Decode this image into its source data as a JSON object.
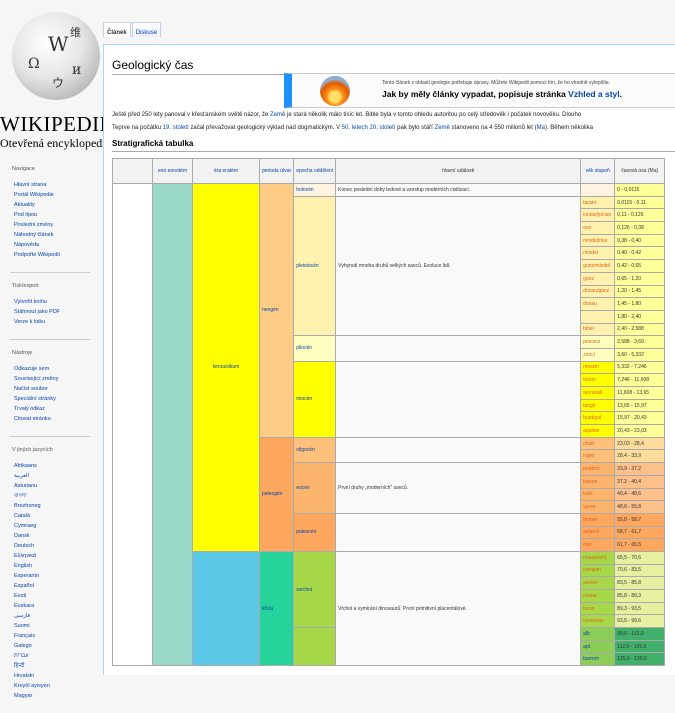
{
  "site": {
    "wordmark": "WIKIPEDIE",
    "tagline": "Otevřená encyklopedie",
    "globe_glyphs": [
      "W",
      "Ω",
      "维",
      "и",
      "ウ"
    ]
  },
  "tabs": [
    {
      "label": "Článek",
      "selected": true
    },
    {
      "label": "Diskuse",
      "selected": false
    }
  ],
  "sidebar": [
    {
      "heading": "Navigace",
      "items": [
        "Hlavní strana",
        "Portál Wikipedie",
        "Aktuality",
        "Pod lípou",
        "Poslední změny",
        "Náhodný článek",
        "Nápověda",
        "Podpořte Wikipedii"
      ]
    },
    {
      "heading": "Tisk/export",
      "items": [
        "Vytvořit knihu",
        "Stáhnout jako PDF",
        "Verze k tisku"
      ]
    },
    {
      "heading": "Nástroje",
      "items": [
        "Odkazuje sem",
        "Související změny",
        "Načíst soubor",
        "Speciální stránky",
        "Trvalý odkaz",
        "Citovat stránku"
      ]
    },
    {
      "heading": "V jiných jazycích",
      "items": [
        "Afrikaans",
        "العربية",
        "Asturianu",
        "বাংলা",
        "Brezhoneg",
        "Català",
        "Cymraeg",
        "Dansk",
        "Deutsch",
        "Ελληνικά",
        "English",
        "Esperanto",
        "Español",
        "Eesti",
        "Euskara",
        "فارسی",
        "Suomi",
        "Français",
        "Galego",
        "עברית",
        "हिन्दी",
        "Hrvatski",
        "Kreyòl ayisyen",
        "Magyar"
      ]
    }
  ],
  "page": {
    "title": "Geologický čas"
  },
  "ambox": {
    "small": "Tento článek z oblasti geologie potřebuje úpravy. Můžete Wikipedii pomoci tím, že ho vhodně vylepšíte.",
    "bold_pre": "Jak by měly články vypadat, popisuje stránka ",
    "bold_link": "Vzhled a styl",
    "bold_post": "."
  },
  "intro": {
    "l1_a": "Ještě před 250 lety panoval v křesťanském světě názor, že ",
    "l1_link": "Země",
    "l1_b": " je stará několik málo tisíc let. Bible byla v tomto ohledu autoritou po celý středověk i počátek novověku. Dlouho",
    "l2_a": "Teprve na počátku ",
    "l2_link1": "19. století",
    "l2_b": " začal převažovat geologický výklad nad dogmatickým. V ",
    "l2_link2": "50. letech 20. století",
    "l2_c": " pak bylo stáří ",
    "l2_link3": "Země",
    "l2_d": " stanoveno na 4 550 milionů let (",
    "l2_link4": "Ma",
    "l2_e": "). Během několika"
  },
  "table": {
    "caption": "Stratigrafická tabulka",
    "headers": {
      "eon": "eon eonotém",
      "era": "éra eratém",
      "period": "perioda útvar",
      "epoch": "epocha oddělení",
      "events": "hlavní události",
      "age": "věk stupeň",
      "dates": "časová osa (Ma)"
    },
    "eon": "",
    "eras": [
      {
        "name": "kenozoikum"
      },
      {
        "name": ""
      }
    ],
    "periods": [
      "neogén",
      "paleogén",
      "křída"
    ],
    "epochs": [
      "holocén",
      "pleistocén",
      "pliocén",
      "miocén",
      "oligocén",
      "eocén",
      "paleocén",
      "svrchní",
      ""
    ],
    "events": [
      "Konec poslední doby ledové a vzestup moderních civilizací.",
      "Vyhynutí mnoha druhů velkých savců. Evoluce lidí.",
      "První druhy „moderních\" savců.",
      "Vrchol a vymírání dinosaurů. První primitivní placentálové."
    ],
    "ages": [
      "",
      "tarant",
      "ionian/jonian",
      "eeo",
      "mindel/riss",
      "mindel",
      "günz/mindel",
      "günz",
      "donau/günz",
      "donau",
      "",
      "biber",
      "piacenz",
      "zancl",
      "messin",
      "torton",
      "serravall",
      "langh",
      "burdigal",
      "aquitan",
      "chatt",
      "rupel",
      "priabon",
      "barton",
      "lutet",
      "ypres",
      "thanet",
      "selandi",
      "dan",
      "maastricht",
      "campan",
      "santon",
      "coniac",
      "turon",
      "cenoman",
      "alb",
      "apt",
      "barrem"
    ],
    "dates": [
      "0 - 0,0115",
      "0,0115 - 0,11",
      "0,11 - 0,126",
      "0,126 - 0,38",
      "0,38 - 0,40",
      "0,40 - 0,42",
      "0,42 - 0,65",
      "0,65 - 1,20",
      "1,20 - 1,45",
      "1,45 - 1,80",
      "1,80 - 2,40",
      "2,40 - 2,588",
      "2,588 - 3,60",
      "3,60 - 5,332",
      "5,332 - 7,246",
      "7,246 - 11,608",
      "11,608 - 13,65",
      "13,65 - 15,97",
      "15,97 - 20,43",
      "20,43 - 23,03",
      "23,03 - 28,4",
      "28,4 - 33,9",
      "33,9 - 37,2",
      "37,2 - 40,4",
      "40,4 - 48,6",
      "48,6 - 55,8",
      "55,8 - 58,7",
      "58,7 - 61,7",
      "61,7 - 65,5",
      "65,5 - 70,6",
      "70,6 - 83,5",
      "83,5 - 85,8",
      "85,8 - 89,3",
      "89,3 - 93,5",
      "93,5 - 99,6",
      "99,6 - 112,0",
      "112,0 - 125,0",
      "125,0 - 130,0"
    ],
    "colors": {
      "eon": "#9ad9ca",
      "ceno": "#ffff00",
      "meso": "#5bc8e8",
      "neogen": "#ffcc88",
      "paleogen": "#fda75f",
      "kreda": "#26d39b",
      "holocen": "#fef2e0",
      "pleisto": "#fff2ae",
      "plio": "#ffffbf",
      "mio": "#ffff00",
      "oligo": "#fec07a",
      "eoc": "#fdb46c",
      "paleoc": "#fda75f",
      "svrch": "#a6d84a"
    }
  }
}
